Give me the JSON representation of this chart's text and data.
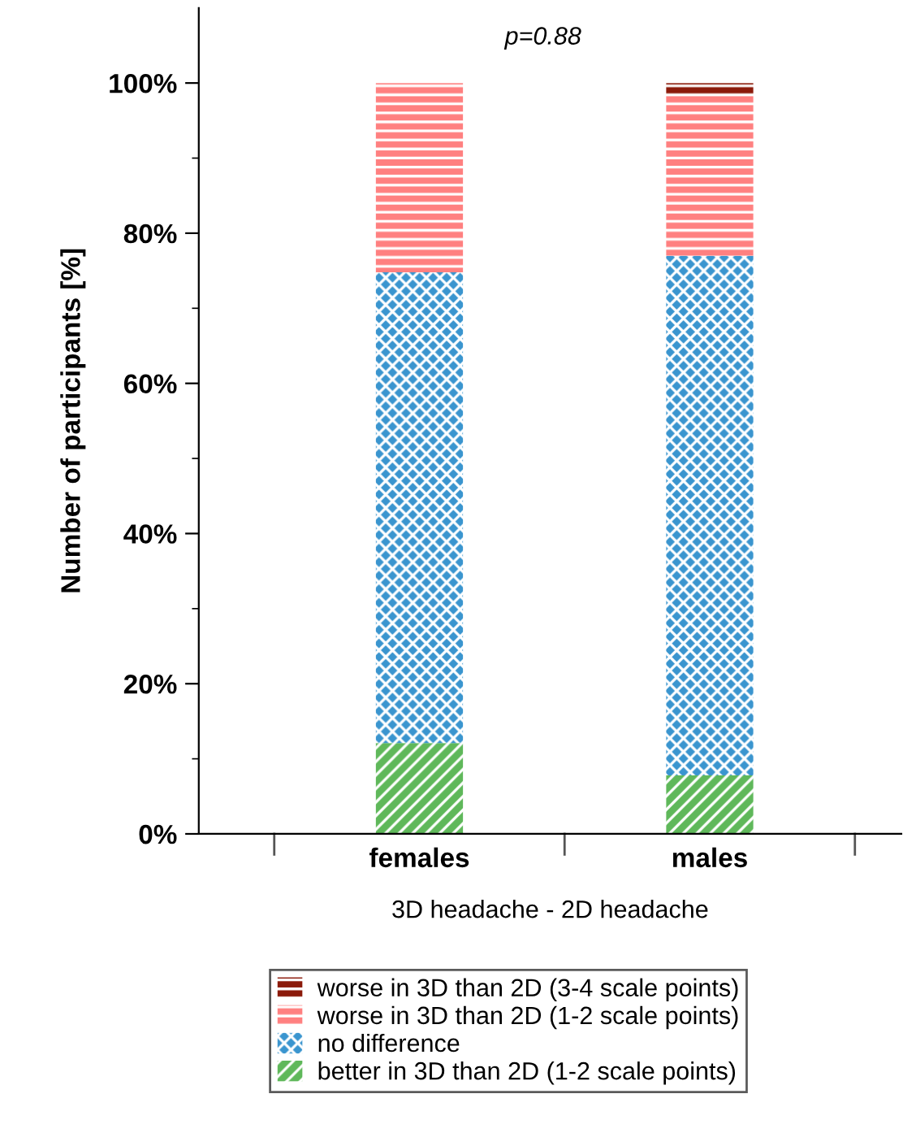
{
  "chart_data": {
    "type": "bar",
    "stacked": true,
    "categories": [
      "females",
      "males"
    ],
    "series": [
      {
        "name": "better in 3D than 2D (1-2 scale points)",
        "color": "#5fb85a",
        "values": [
          12.1,
          7.8
        ]
      },
      {
        "name": "no difference",
        "color": "#3a95cf",
        "values": [
          62.7,
          69.2
        ]
      },
      {
        "name": "worse in 3D than 2D (1-2 scale points)",
        "color": "#ff8080",
        "values": [
          25.2,
          21.5
        ]
      },
      {
        "name": "worse in 3D than 2D (3-4 scale points)",
        "color": "#8b1a0a",
        "values": [
          0,
          1.5
        ]
      }
    ],
    "ylabel": "Number of participants [%]",
    "xlabel": "3D headache - 2D headache",
    "annotations": [
      "p=0.88"
    ],
    "ylim": [
      0,
      110
    ],
    "yticks": [
      {
        "value": 0,
        "label": "0%"
      },
      {
        "value": 10,
        "label": null
      },
      {
        "value": 20,
        "label": "20%"
      },
      {
        "value": 30,
        "label": null
      },
      {
        "value": 40,
        "label": "40%"
      },
      {
        "value": 50,
        "label": null
      },
      {
        "value": 60,
        "label": "60%"
      },
      {
        "value": 70,
        "label": null
      },
      {
        "value": 80,
        "label": "80%"
      },
      {
        "value": 90,
        "label": null
      },
      {
        "value": 100,
        "label": "100%"
      }
    ],
    "legend": "bottom",
    "grid": false
  }
}
